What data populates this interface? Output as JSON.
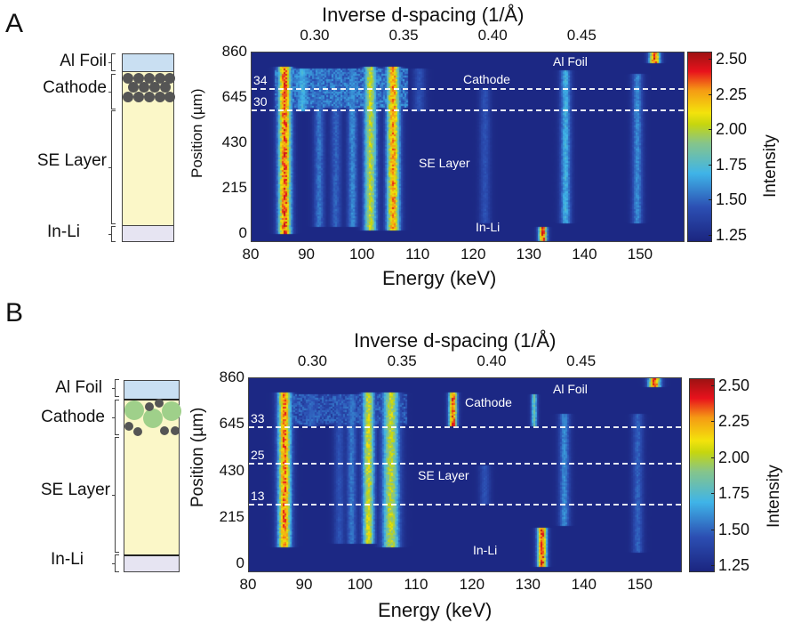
{
  "figure": {
    "panels": [
      {
        "id": "A",
        "letter": "A",
        "schematic": {
          "layers": [
            {
              "name": "Al Foil",
              "color": "#c9dff2"
            },
            {
              "name": "Cathode",
              "color": "#fbf7c8",
              "particles": "dark-grey-dense"
            },
            {
              "name": "SE Layer",
              "color": "#fbf7c8"
            },
            {
              "name": "In-Li",
              "color": "#e6e4f2"
            }
          ]
        },
        "region_labels": [
          "Cathode",
          "SE Layer",
          "In-Li",
          "Al Foil"
        ],
        "dashed_lines": [
          {
            "label": "34",
            "position_um": 690
          },
          {
            "label": "30",
            "position_um": 590
          }
        ]
      },
      {
        "id": "B",
        "letter": "B",
        "schematic": {
          "layers": [
            {
              "name": "Al Foil",
              "color": "#c9dff2"
            },
            {
              "name": "Cathode",
              "color": "#fbf7c8",
              "particles": "green-and-grey"
            },
            {
              "name": "SE Layer",
              "color": "#fbf7c8"
            },
            {
              "name": "In-Li",
              "color": "#e6e4f2"
            }
          ]
        },
        "region_labels": [
          "Cathode",
          "SE Layer",
          "In-Li",
          "Al Foil"
        ],
        "dashed_lines": [
          {
            "label": "33",
            "position_um": 640
          },
          {
            "label": "25",
            "position_um": 470
          },
          {
            "label": "13",
            "position_um": 280
          }
        ]
      }
    ]
  },
  "chart_data": [
    {
      "type": "heatmap",
      "title": "Panel A",
      "xlabel": "Energy (keV)",
      "ylabel": "Position (µm)",
      "top_xlabel": "Inverse d-spacing (1/Å)",
      "colorbar_label": "Intensity",
      "xlim": [
        80,
        158
      ],
      "ylim": [
        -40,
        860
      ],
      "x_ticks": [
        "80",
        "90",
        "100",
        "110",
        "120",
        "130",
        "140",
        "150"
      ],
      "y_ticks": [
        "0",
        "215",
        "430",
        "645",
        "860"
      ],
      "top_ticks": [
        "0.30",
        "0.35",
        "0.40",
        "0.45"
      ],
      "top_tick_energy": [
        91.5,
        107.5,
        123.5,
        139.5
      ],
      "colorbar_ticks": [
        "1.25",
        "1.50",
        "1.75",
        "2.00",
        "2.25",
        "2.50"
      ],
      "colorbar_range": [
        1.2,
        2.55
      ],
      "lines": [
        {
          "energy": 85.8,
          "y0": 10,
          "y1": 800,
          "peak": 2.4,
          "width": 1.1
        },
        {
          "energy": 89,
          "y0": 590,
          "y1": 790,
          "peak": 1.7,
          "width": 1.2
        },
        {
          "energy": 92,
          "y0": 40,
          "y1": 790,
          "peak": 1.55,
          "width": 0.9
        },
        {
          "energy": 95,
          "y0": 40,
          "y1": 790,
          "peak": 1.5,
          "width": 0.9
        },
        {
          "energy": 98,
          "y0": 40,
          "y1": 790,
          "peak": 1.6,
          "width": 0.9
        },
        {
          "energy": 101.2,
          "y0": 20,
          "y1": 800,
          "peak": 2.05,
          "width": 1.1
        },
        {
          "energy": 105.3,
          "y0": 20,
          "y1": 800,
          "peak": 2.3,
          "width": 1.1
        },
        {
          "energy": 110,
          "y0": 590,
          "y1": 790,
          "peak": 1.45,
          "width": 1.0
        },
        {
          "energy": 121.8,
          "y0": 60,
          "y1": 700,
          "peak": 1.45,
          "width": 0.9
        },
        {
          "energy": 132.2,
          "y0": -30,
          "y1": 40,
          "peak": 2.45,
          "width": 0.7
        },
        {
          "energy": 136.3,
          "y0": 60,
          "y1": 780,
          "peak": 1.7,
          "width": 0.9
        },
        {
          "energy": 149.2,
          "y0": 60,
          "y1": 760,
          "peak": 1.6,
          "width": 0.9
        },
        {
          "energy": 152.3,
          "y0": 810,
          "y1": 860,
          "peak": 2.45,
          "width": 0.9
        }
      ],
      "regions": [
        {
          "y0": 600,
          "y1": 790,
          "level": 1.55,
          "x0": 84,
          "x1": 108
        }
      ]
    },
    {
      "type": "heatmap",
      "title": "Panel B",
      "xlabel": "Energy (keV)",
      "ylabel": "Position (µm)",
      "top_xlabel": "Inverse d-spacing (1/Å)",
      "colorbar_label": "Intensity",
      "xlim": [
        80,
        157.5
      ],
      "ylim": [
        -40,
        860
      ],
      "x_ticks": [
        "80",
        "90",
        "100",
        "110",
        "120",
        "130",
        "140",
        "150"
      ],
      "y_ticks": [
        "0",
        "215",
        "430",
        "645",
        "860"
      ],
      "top_ticks": [
        "0.30",
        "0.35",
        "0.40",
        "0.45"
      ],
      "top_tick_energy": [
        91.5,
        107.5,
        123.5,
        139.5
      ],
      "colorbar_ticks": [
        "1.25",
        "1.50",
        "1.75",
        "2.00",
        "2.25",
        "2.50"
      ],
      "colorbar_range": [
        1.2,
        2.55
      ],
      "lines": [
        {
          "energy": 86.2,
          "y0": 80,
          "y1": 800,
          "peak": 2.35,
          "width": 1.1
        },
        {
          "energy": 91,
          "y0": 640,
          "y1": 790,
          "peak": 1.5,
          "width": 1.2
        },
        {
          "energy": 96,
          "y0": 100,
          "y1": 790,
          "peak": 1.45,
          "width": 0.9
        },
        {
          "energy": 98.2,
          "y0": 100,
          "y1": 790,
          "peak": 1.55,
          "width": 0.9
        },
        {
          "energy": 101.2,
          "y0": 100,
          "y1": 800,
          "peak": 2.1,
          "width": 1.0
        },
        {
          "energy": 105.2,
          "y0": 80,
          "y1": 800,
          "peak": 2.05,
          "width": 1.4
        },
        {
          "energy": 116.3,
          "y0": 640,
          "y1": 800,
          "peak": 2.4,
          "width": 0.7
        },
        {
          "energy": 122,
          "y0": 280,
          "y1": 460,
          "peak": 1.45,
          "width": 0.9
        },
        {
          "energy": 130.8,
          "y0": 640,
          "y1": 790,
          "peak": 1.85,
          "width": 0.5
        },
        {
          "energy": 132.2,
          "y0": -10,
          "y1": 170,
          "peak": 2.45,
          "width": 0.8
        },
        {
          "energy": 136.2,
          "y0": 180,
          "y1": 700,
          "peak": 1.6,
          "width": 0.9
        },
        {
          "energy": 149.3,
          "y0": 60,
          "y1": 700,
          "peak": 1.5,
          "width": 0.9
        },
        {
          "energy": 152.3,
          "y0": 820,
          "y1": 860,
          "peak": 2.45,
          "width": 1.0
        }
      ],
      "regions": [
        {
          "y0": 650,
          "y1": 790,
          "level": 1.45,
          "x0": 86,
          "x1": 108
        }
      ]
    }
  ]
}
